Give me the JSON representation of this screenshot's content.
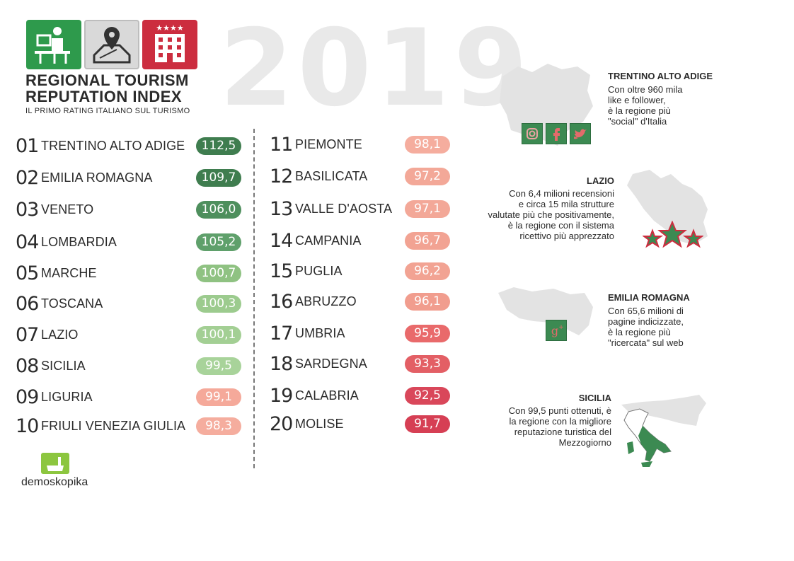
{
  "header": {
    "title_line1": "REGIONAL TOURISM",
    "title_line2": "REPUTATION INDEX",
    "subtitle": "IL PRIMO RATING ITALIANO SUL TURISMO",
    "year": "2019",
    "icons": [
      "desk-worker-icon",
      "map-pin-icon",
      "hotel-building-icon"
    ]
  },
  "ranking": [
    {
      "rank": "01",
      "region": "TRENTINO ALTO ADIGE",
      "score": "112,5",
      "color": "#3f7d4f"
    },
    {
      "rank": "02",
      "region": "EMILIA ROMAGNA",
      "score": "109,7",
      "color": "#3f7d4f"
    },
    {
      "rank": "03",
      "region": "VENETO",
      "score": "106,0",
      "color": "#4e8f5d"
    },
    {
      "rank": "04",
      "region": "LOMBARDIA",
      "score": "105,2",
      "color": "#5fa06b"
    },
    {
      "rank": "05",
      "region": "MARCHE",
      "score": "100,7",
      "color": "#8fc282"
    },
    {
      "rank": "06",
      "region": "TOSCANA",
      "score": "100,3",
      "color": "#9ccb8e"
    },
    {
      "rank": "07",
      "region": "LAZIO",
      "score": "100,1",
      "color": "#a3cf94"
    },
    {
      "rank": "08",
      "region": "SICILIA",
      "score": "99,5",
      "color": "#a8d39a"
    },
    {
      "rank": "09",
      "region": "LIGURIA",
      "score": "99,1",
      "color": "#f5a99a"
    },
    {
      "rank": "10",
      "region": "FRIULI VENEZIA GIULIA",
      "score": "98,3",
      "color": "#f5ad9e"
    },
    {
      "rank": "11",
      "region": "PIEMONTE",
      "score": "98,1",
      "color": "#f5ad9e"
    },
    {
      "rank": "12",
      "region": "BASILICATA",
      "score": "97,2",
      "color": "#f3a898"
    },
    {
      "rank": "13",
      "region": "VALLE D'AOSTA",
      "score": "97,1",
      "color": "#f3a898"
    },
    {
      "rank": "14",
      "region": "CAMPANIA",
      "score": "96,7",
      "color": "#f2a393"
    },
    {
      "rank": "15",
      "region": "PUGLIA",
      "score": "96,2",
      "color": "#f2a393"
    },
    {
      "rank": "16",
      "region": "ABRUZZO",
      "score": "96,1",
      "color": "#f19d8e"
    },
    {
      "rank": "17",
      "region": "UMBRIA",
      "score": "95,9",
      "color": "#e96a6b"
    },
    {
      "rank": "18",
      "region": "SARDEGNA",
      "score": "93,3",
      "color": "#e35f65"
    },
    {
      "rank": "19",
      "region": "CALABRIA",
      "score": "92,5",
      "color": "#d9475a"
    },
    {
      "rank": "20",
      "region": "MOLISE",
      "score": "91,7",
      "color": "#d63f54"
    }
  ],
  "highlights": {
    "trentino": {
      "title": "TRENTINO ALTO ADIGE",
      "text": "Con oltre 960 mila\nlike e follower,\nè la regione più\n\"social\" d'Italia",
      "icons": [
        "instagram-icon",
        "facebook-icon",
        "twitter-icon"
      ]
    },
    "lazio": {
      "title": "LAZIO",
      "text": "Con 6,4 milioni recensioni\ne circa 15 mila strutture\nvalutate più che positivamente,\nè la regione con il sistema\nricettivo più apprezzato",
      "icons": [
        "star-icon",
        "star-icon",
        "star-icon"
      ]
    },
    "emilia": {
      "title": "EMILIA ROMAGNA",
      "text": "Con 65,6 milioni di\npagine indicizzate,\nè la regione più\n\"ricercata\" sul web",
      "icons": [
        "google-plus-icon"
      ]
    },
    "sicilia": {
      "title": "SICILIA",
      "text": "Con 99,5 punti ottenuti, è\nla regione con la migliore\nreputazione turistica del\nMezzogiorno",
      "icons": [
        "italy-map-icon"
      ]
    }
  },
  "footer": {
    "logo_text": "demoskopika"
  },
  "colors": {
    "accent_green": "#2e9a4c",
    "accent_red": "#cc2d3f",
    "map_grey": "#e3e3e3"
  }
}
